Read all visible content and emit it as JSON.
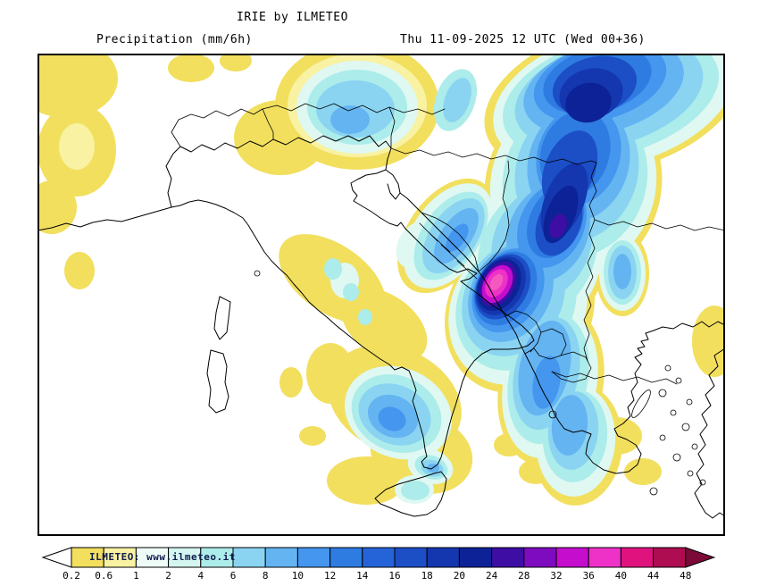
{
  "header": {
    "title": "IRIE by ILMETEO",
    "product_label": "Precipitation (mm/6h)",
    "valid_time_label": "Thu 11-09-2025 12 UTC (Wed 00+36)"
  },
  "colorbar": {
    "watermark": "ILMETEO: www.ilmeteo.it",
    "ticks": [
      "0.2",
      "0.6",
      "1",
      "2",
      "4",
      "6",
      "8",
      "10",
      "12",
      "14",
      "16",
      "18",
      "20",
      "24",
      "28",
      "32",
      "36",
      "40",
      "44",
      "48"
    ],
    "segments": [
      "#F2DF5E",
      "#F8F2A2",
      "#EFFBF6",
      "#D5F6F0",
      "#ACECEA",
      "#8AD4F2",
      "#64B4F2",
      "#4496EE",
      "#2E7CE2",
      "#2563D8",
      "#1C4EC6",
      "#1436AE",
      "#0D2296",
      "#3D0DA4",
      "#7E0BC0",
      "#C50DCE",
      "#EE32C8",
      "#E0137E",
      "#AE0D52"
    ],
    "underflow_color": "#FFFFFF",
    "overflow_color": "#7C0A38",
    "peak_color": "#F558BE",
    "light_precip_color": "#F2DF5E"
  }
}
